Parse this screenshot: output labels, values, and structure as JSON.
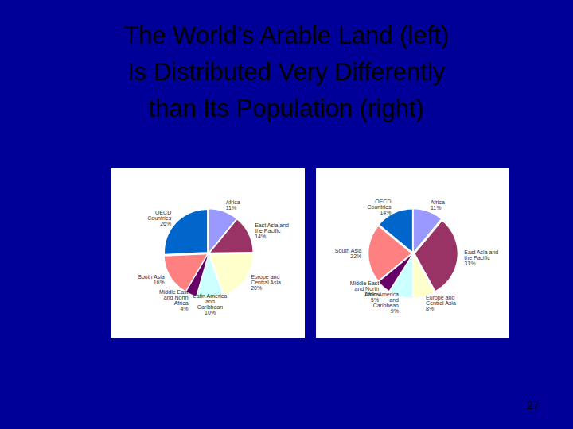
{
  "title": "The World’s Arable Land (left)\nIs Distributed Very Differently\nthan Its Population (right)",
  "page_number": 27,
  "chart_data": [
    {
      "type": "pie",
      "categories": [
        "Africa",
        "East Asia and the Pacific",
        "Europe and Central Asia",
        "Latin America and Caribbean",
        "Middle East and North Africa",
        "South Asia",
        "OECD Countries"
      ],
      "values": [
        11,
        14,
        20,
        10,
        4,
        16,
        26
      ],
      "value_labels": [
        "11%",
        "14%",
        "20%",
        "10%",
        "4%",
        "16%",
        "26%"
      ],
      "colors": [
        "#9999ff",
        "#993366",
        "#ffffcc",
        "#ccffff",
        "#660066",
        "#ff8080",
        "#0066cc"
      ],
      "data_labels": true
    },
    {
      "type": "pie",
      "categories": [
        "Africa",
        "East Asia and the Pacific",
        "Europe and Central Asia",
        "Latin America and Caribbean",
        "Middle East and North Africa",
        "South Asia",
        "OECD Countries"
      ],
      "values": [
        11,
        31,
        8,
        9,
        5,
        22,
        14
      ],
      "value_labels": [
        "11%",
        "31%",
        "8%",
        "9%",
        "5%",
        "22%",
        "14%"
      ],
      "colors": [
        "#9999ff",
        "#993366",
        "#ffffcc",
        "#ccffff",
        "#660066",
        "#ff8080",
        "#0066cc"
      ],
      "data_labels": true
    }
  ]
}
